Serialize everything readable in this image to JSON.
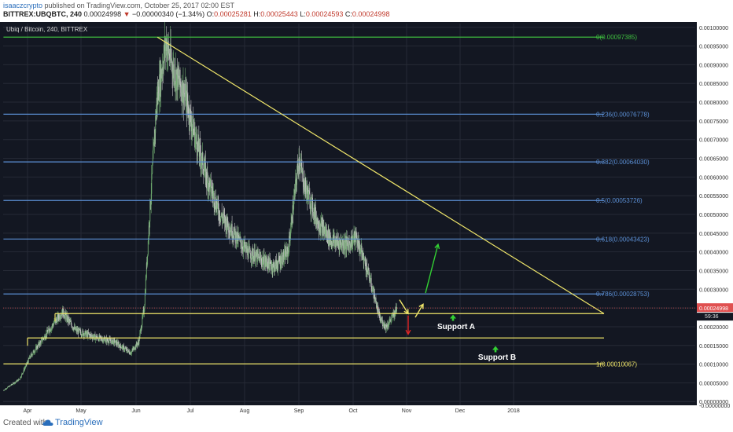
{
  "header": {
    "author": "isaaczcrypto",
    "published_text": "published on TradingView.com, October 25, 2017 02:00 EST",
    "symbol_line": "BITTREX:UBQBTC, 240",
    "last_value": "0.00024998",
    "change_arrow": "▼",
    "change_text": "−0.00000340 (−1.34%)",
    "ohlc": [
      {
        "key": "O:",
        "value": "0.00025281"
      },
      {
        "key": "H:",
        "value": "0.00025443"
      },
      {
        "key": "L:",
        "value": "0.00024593"
      },
      {
        "key": "C:",
        "value": "0.00024998"
      }
    ]
  },
  "footer": {
    "created_with": "Created with",
    "brand": "TradingView"
  },
  "colors": {
    "background": "#131722",
    "grid": "#262a36",
    "green": "#3fbf3f",
    "blue": "#5b8fd4",
    "yellow": "#f0e66a",
    "up_candle": "#6ea86e",
    "down_candle": "#c0c0c0",
    "price_line": "#e05050",
    "arrow_green": "#33d133",
    "arrow_red": "#e02525"
  },
  "chart_data": {
    "type": "candlestick",
    "title": "Ubiq / Bitcoin, 240, BITTREX",
    "x_tick_labels": [
      "Apr",
      "May",
      "Jun",
      "Jul",
      "Aug",
      "Sep",
      "Oct",
      "Nov",
      "Dec",
      "2018"
    ],
    "y_tick_labels": [
      "0.00100000",
      "0.00095000",
      "0.00090000",
      "0.00085000",
      "0.00080000",
      "0.00075000",
      "0.00070000",
      "0.00065000",
      "0.00060000",
      "0.00055000",
      "0.00050000",
      "0.00045000",
      "0.00040000",
      "0.00035000",
      "0.00030000",
      "0.00025000",
      "0.00020000",
      "0.00015000",
      "0.00010000",
      "0.00005000",
      "0.00000000",
      "-0.00000000"
    ],
    "ylim": [
      -1e-05,
      0.00101
    ],
    "current_price": {
      "value": 0.00024998,
      "label": "0.00024998",
      "countdown": "59:36"
    },
    "fib_levels": [
      {
        "ratio": "0",
        "value": 0.00097385,
        "label": "0(0.00097385)",
        "color": "green"
      },
      {
        "ratio": "0.236",
        "value": 0.00076778,
        "label": "0.236(0.00076778)",
        "color": "blue"
      },
      {
        "ratio": "0.382",
        "value": 0.0006403,
        "label": "0.382(0.00064030)",
        "color": "blue"
      },
      {
        "ratio": "0.5",
        "value": 0.00053726,
        "label": "0.5(0.00053726)",
        "color": "blue"
      },
      {
        "ratio": "0.618",
        "value": 0.00043423,
        "label": "0.618(0.00043423)",
        "color": "blue"
      },
      {
        "ratio": "0.786",
        "value": 0.00028753,
        "label": "0.786(0.00028753)",
        "color": "blue"
      },
      {
        "ratio": "1",
        "value": 0.00010067,
        "label": "1(0.00010067)",
        "color": "yellow"
      }
    ],
    "support_lines": [
      {
        "name": "Support A",
        "value": 0.000235
      },
      {
        "name": "Support B",
        "value": 0.00017
      }
    ],
    "annotations": [
      "Support A",
      "Support B"
    ],
    "price_path_monthly": [
      {
        "month": "Mar 2017",
        "approx_close": 3e-05
      },
      {
        "month": "Apr 2017",
        "approx_close": 0.0002
      },
      {
        "month": "May 2017",
        "approx_close": 0.00015
      },
      {
        "month": "Jun 2017",
        "approx_close": 0.0009
      },
      {
        "month": "Jul 2017",
        "approx_close": 0.0006
      },
      {
        "month": "Aug 2017",
        "approx_close": 0.0004
      },
      {
        "month": "Sep 2017",
        "approx_close": 0.0005
      },
      {
        "month": "Oct 2017",
        "approx_close": 0.00025
      }
    ]
  }
}
